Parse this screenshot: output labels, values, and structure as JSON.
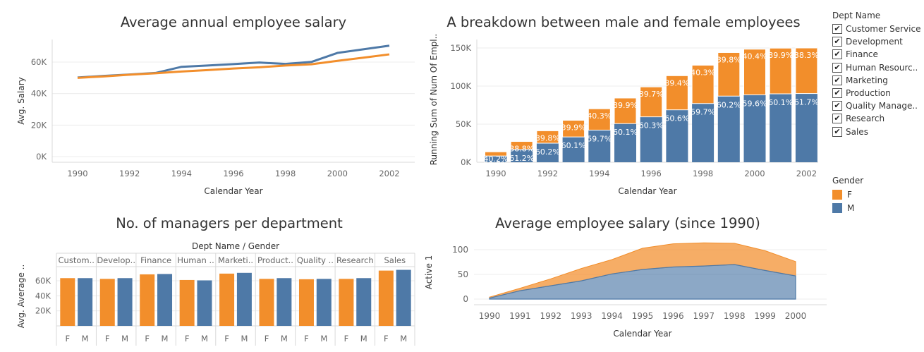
{
  "colors": {
    "female": "#f28e2b",
    "male": "#4e79a7",
    "grid": "#ececec",
    "axis": "#d9d9d9",
    "text": "#666666"
  },
  "chart_data": [
    {
      "type": "line",
      "title": "Average annual employee salary",
      "xlabel": "Calendar Year",
      "ylabel": "Avg. Salary",
      "x": [
        1990,
        1991,
        1992,
        1993,
        1994,
        1995,
        1996,
        1997,
        1998,
        1999,
        2000,
        2001,
        2002
      ],
      "x_ticks": [
        "1990",
        "1992",
        "1994",
        "1996",
        "1998",
        "2000",
        "2002"
      ],
      "y_ticks": [
        "0K",
        "20K",
        "40K",
        "60K"
      ],
      "ylim": [
        0,
        72000
      ],
      "series": [
        {
          "color": "male",
          "values": [
            50200,
            51200,
            52100,
            53100,
            57000,
            57800,
            58700,
            59700,
            58800,
            60100,
            65800,
            68100,
            70400
          ]
        },
        {
          "color": "female",
          "values": [
            50000,
            50900,
            52000,
            52900,
            54000,
            54900,
            55900,
            56700,
            57800,
            58600,
            60800,
            62800,
            64900
          ]
        }
      ]
    },
    {
      "type": "bar",
      "stacked": true,
      "title": "A breakdown between male and female employees",
      "xlabel": "Calendar Year",
      "ylabel": "Running Sum of Num Of Empl..",
      "categories": [
        "1990",
        "1991",
        "1992",
        "1993",
        "1994",
        "1995",
        "1996",
        "1997",
        "1998",
        "1999",
        "2000",
        "2001",
        "2002"
      ],
      "x_ticks": [
        "1990",
        "1992",
        "1994",
        "1996",
        "1998",
        "2000",
        "2002"
      ],
      "y_ticks": [
        "0K",
        "50K",
        "100K",
        "150K"
      ],
      "ylim": [
        0,
        155000
      ],
      "series": [
        {
          "name": "M",
          "color": "male",
          "values": [
            8200,
            16800,
            25000,
            33200,
            42200,
            50700,
            59600,
            68800,
            77100,
            86800,
            88500,
            89800,
            90200
          ],
          "labels": [
            "59.8%",
            "61.2%",
            "60.2%",
            "60.1%",
            "59.7%",
            "60.1%",
            "60.3%",
            "60.6%",
            "59.7%",
            "60.2%",
            "59.6%",
            "60.1%",
            "61.7%"
          ]
        },
        {
          "name": "F",
          "color": "female",
          "values": [
            5500,
            10500,
            16300,
            21900,
            28000,
            33600,
            39300,
            44800,
            50300,
            57200,
            59900,
            60000,
            59800
          ],
          "labels": [
            "40.2%",
            "38.8%",
            "39.8%",
            "39.9%",
            "40.3%",
            "39.9%",
            "39.7%",
            "39.4%",
            "40.3%",
            "39.8%",
            "40.4%",
            "39.9%",
            "38.3%"
          ]
        }
      ]
    },
    {
      "type": "bar",
      "title": "No. of managers per department",
      "header": "Dept Name  /  Gender",
      "ylabel": "Avg. Average ..",
      "y_ticks": [
        "20K",
        "40K",
        "60K"
      ],
      "ylim": [
        0,
        80000
      ],
      "departments": [
        {
          "label": "Custom..",
          "F": 63500,
          "M": 63500
        },
        {
          "label": "Develop..",
          "F": 62500,
          "M": 63500
        },
        {
          "label": "Finance",
          "F": 68500,
          "M": 69000
        },
        {
          "label": "Human ..",
          "F": 61000,
          "M": 60500
        },
        {
          "label": "Marketi..",
          "F": 69500,
          "M": 70500
        },
        {
          "label": "Product..",
          "F": 62500,
          "M": 63500
        },
        {
          "label": "Quality ..",
          "F": 62000,
          "M": 62500
        },
        {
          "label": "Research",
          "F": 62500,
          "M": 63500
        },
        {
          "label": "Sales",
          "F": 73500,
          "M": 74500
        }
      ],
      "gender_labels": [
        "F",
        "M"
      ]
    },
    {
      "type": "area",
      "stacked": true,
      "title": "Average employee salary (since 1990)",
      "xlabel": "Calendar Year",
      "ylabel": "Active 1",
      "x": [
        "1990",
        "1991",
        "1992",
        "1993",
        "1994",
        "1995",
        "1996",
        "1997",
        "1998",
        "1999",
        "2000"
      ],
      "y_ticks": [
        "0",
        "50",
        "100"
      ],
      "ylim": [
        0,
        118
      ],
      "series": [
        {
          "color": "male",
          "values": [
            2,
            17,
            27,
            37,
            51,
            60,
            65,
            67,
            70,
            58,
            47
          ]
        },
        {
          "color": "female",
          "values": [
            2,
            5,
            14,
            25,
            29,
            43,
            47,
            47,
            43,
            40,
            29
          ]
        }
      ]
    }
  ],
  "legend_dept": {
    "title": "Dept Name",
    "items": [
      "Customer Service",
      "Development",
      "Finance",
      "Human Resourc..",
      "Marketing",
      "Production",
      "Quality Manage..",
      "Research",
      "Sales"
    ]
  },
  "legend_gender": {
    "title": "Gender",
    "items": [
      {
        "label": "F",
        "color": "#f28e2b"
      },
      {
        "label": "M",
        "color": "#4e79a7"
      }
    ]
  }
}
